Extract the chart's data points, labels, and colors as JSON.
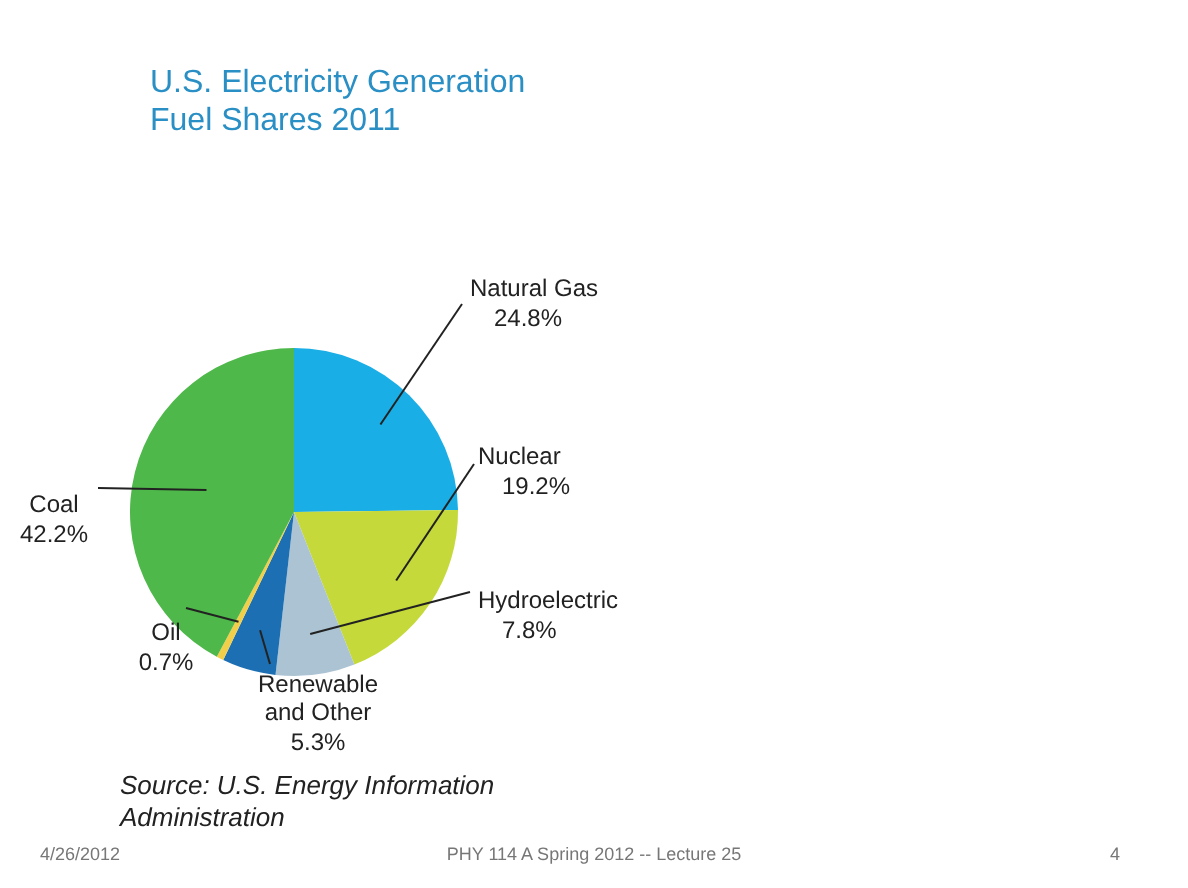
{
  "chart_data": {
    "type": "pie",
    "title": "U.S. Electricity Generation Fuel Shares 2011",
    "categories": [
      "Natural Gas",
      "Nuclear",
      "Hydroelectric",
      "Renewable and Other",
      "Oil",
      "Coal"
    ],
    "values": [
      24.8,
      19.2,
      7.8,
      5.3,
      0.7,
      42.2
    ],
    "value_labels": [
      "24.8%",
      "19.2%",
      "7.8%",
      "5.3%",
      "0.7%",
      "42.2%"
    ],
    "colors": [
      "#1aaee6",
      "#c5d93a",
      "#abc3d3",
      "#1d6fb3",
      "#f2cf4a",
      "#4fb84a"
    ],
    "annotations": [
      "Source: U.S. Energy Information Administration",
      "4/26/2012",
      "PHY 114 A  Spring 2012 -- Lecture 25",
      "4"
    ]
  }
}
